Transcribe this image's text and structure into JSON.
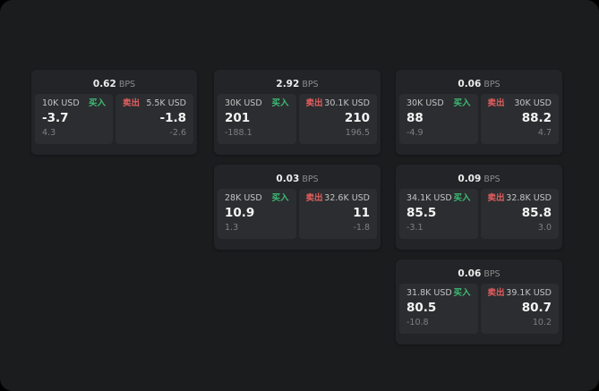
{
  "colors": {
    "buy": "#3dbb74",
    "sell": "#e25f5f",
    "background": "#1b1c1e",
    "card": "#232427",
    "panel": "#2c2d30"
  },
  "cards": [
    {
      "bps_value": "0.62",
      "bps_label": "BPS",
      "buy": {
        "amount": "10K USD",
        "action": "买入",
        "price": "-3.7",
        "sub": "4.3"
      },
      "sell": {
        "amount": "5.5K USD",
        "action": "卖出",
        "price": "-1.8",
        "sub": "-2.6"
      }
    },
    {
      "bps_value": "2.92",
      "bps_label": "BPS",
      "buy": {
        "amount": "30K USD",
        "action": "买入",
        "price": "201",
        "sub": "-188.1"
      },
      "sell": {
        "amount": "30.1K USD",
        "action": "卖出",
        "price": "210",
        "sub": "196.5"
      }
    },
    {
      "bps_value": "0.06",
      "bps_label": "BPS",
      "buy": {
        "amount": "30K USD",
        "action": "买入",
        "price": "88",
        "sub": "-4.9"
      },
      "sell": {
        "amount": "30K USD",
        "action": "卖出",
        "price": "88.2",
        "sub": "4.7"
      }
    },
    {
      "bps_value": "0.03",
      "bps_label": "BPS",
      "buy": {
        "amount": "28K USD",
        "action": "买入",
        "price": "10.9",
        "sub": "1.3"
      },
      "sell": {
        "amount": "32.6K USD",
        "action": "卖出",
        "price": "11",
        "sub": "-1.8"
      }
    },
    {
      "bps_value": "0.09",
      "bps_label": "BPS",
      "buy": {
        "amount": "34.1K USD",
        "action": "买入",
        "price": "85.5",
        "sub": "-3.1"
      },
      "sell": {
        "amount": "32.8K USD",
        "action": "卖出",
        "price": "85.8",
        "sub": "3.0"
      }
    },
    {
      "bps_value": "0.06",
      "bps_label": "BPS",
      "buy": {
        "amount": "31.8K USD",
        "action": "买入",
        "price": "80.5",
        "sub": "-10.8"
      },
      "sell": {
        "amount": "39.1K USD",
        "action": "卖出",
        "price": "80.7",
        "sub": "10.2"
      }
    }
  ]
}
